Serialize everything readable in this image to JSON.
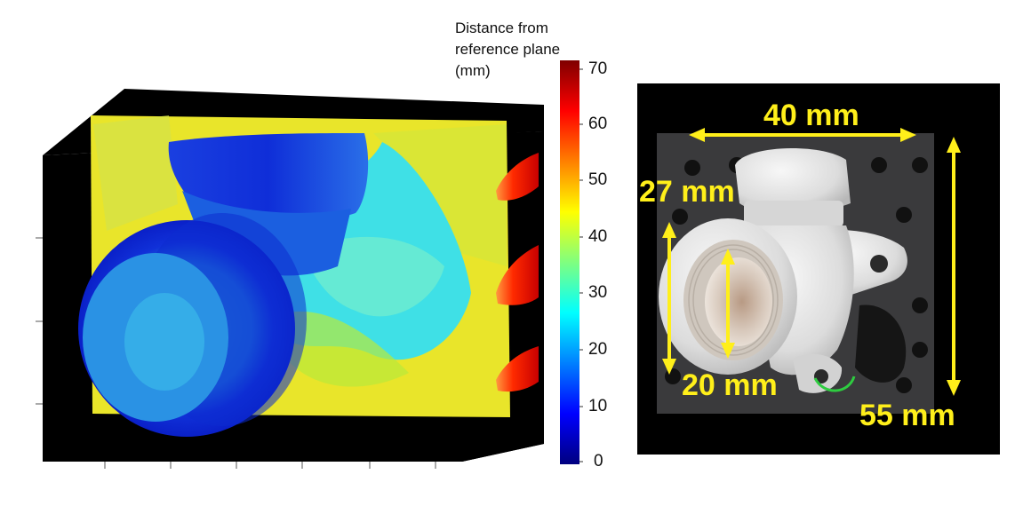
{
  "heatmap": {
    "colorbar_title": "Distance from reference plane (mm)",
    "colorbar_ticks": [
      "70",
      "60",
      "50",
      "40",
      "30",
      "20",
      "10",
      "0"
    ],
    "colormap": "jet",
    "background_color": "#000000"
  },
  "photo": {
    "subject": "white plastic pipe elbow fitting with flange",
    "dimensions": {
      "width_label": "40 mm",
      "height_label": "55 mm",
      "flange_label": "27 mm",
      "bore_label": "20 mm"
    },
    "annotation_color": "#ffef1a"
  }
}
